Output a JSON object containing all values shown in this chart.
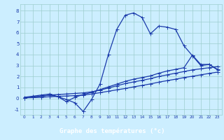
{
  "xlabel": "Graphe des températures (°c)",
  "bg_color": "#cceeff",
  "line_color": "#1a3aaa",
  "grid_color": "#9ecece",
  "xlim": [
    -0.5,
    23.5
  ],
  "ylim": [
    -1.5,
    8.6
  ],
  "yticks": [
    -1,
    0,
    1,
    2,
    3,
    4,
    5,
    6,
    7,
    8
  ],
  "xticks": [
    0,
    1,
    2,
    3,
    4,
    5,
    6,
    7,
    8,
    9,
    10,
    11,
    12,
    13,
    14,
    15,
    16,
    17,
    18,
    19,
    20,
    21,
    22,
    23
  ],
  "xlabel_bg": "#2244aa",
  "xlabel_color": "#ffffff",
  "s1_x": [
    0,
    1,
    2,
    3,
    4,
    5,
    6,
    7,
    8,
    9,
    10,
    11,
    12,
    13,
    14,
    15,
    16,
    17,
    18,
    19,
    20,
    21,
    22,
    23
  ],
  "s1_y": [
    0.1,
    0.2,
    0.3,
    0.4,
    0.15,
    -0.1,
    -0.4,
    -1.2,
    -0.1,
    1.3,
    4.0,
    6.3,
    7.6,
    7.8,
    7.4,
    5.9,
    6.6,
    6.5,
    6.3,
    4.8,
    3.9,
    3.0,
    3.1,
    2.6
  ],
  "s2_x": [
    0,
    1,
    2,
    3,
    4,
    5,
    6,
    7,
    8,
    9,
    10,
    11,
    12,
    13,
    14,
    15,
    16,
    17,
    18,
    19,
    20,
    21,
    22,
    23
  ],
  "s2_y": [
    0.05,
    0.1,
    0.2,
    0.3,
    0.35,
    0.4,
    0.45,
    0.5,
    0.6,
    0.75,
    0.95,
    1.15,
    1.35,
    1.5,
    1.65,
    1.8,
    2.0,
    2.15,
    2.3,
    2.45,
    2.6,
    2.7,
    2.8,
    2.9
  ],
  "s3_x": [
    0,
    1,
    2,
    3,
    4,
    5,
    6,
    7,
    8,
    9,
    10,
    11,
    12,
    13,
    14,
    15,
    16,
    17,
    18,
    19,
    20,
    21,
    22,
    23
  ],
  "s3_y": [
    0.05,
    0.07,
    0.1,
    0.15,
    0.18,
    0.22,
    0.25,
    0.3,
    0.4,
    0.52,
    0.65,
    0.78,
    0.9,
    1.05,
    1.18,
    1.32,
    1.48,
    1.62,
    1.75,
    1.9,
    2.02,
    2.15,
    2.28,
    2.4
  ],
  "s4_x": [
    0,
    2,
    3,
    4,
    5,
    6,
    7,
    8,
    9,
    10,
    11,
    12,
    13,
    14,
    15,
    16,
    17,
    18,
    19,
    20,
    21,
    22,
    23
  ],
  "s4_y": [
    0.05,
    0.2,
    0.3,
    0.15,
    -0.3,
    0.1,
    0.35,
    0.55,
    0.8,
    1.05,
    1.3,
    1.55,
    1.75,
    1.9,
    2.05,
    2.3,
    2.5,
    2.65,
    2.8,
    3.95,
    3.1,
    3.1,
    2.65
  ]
}
